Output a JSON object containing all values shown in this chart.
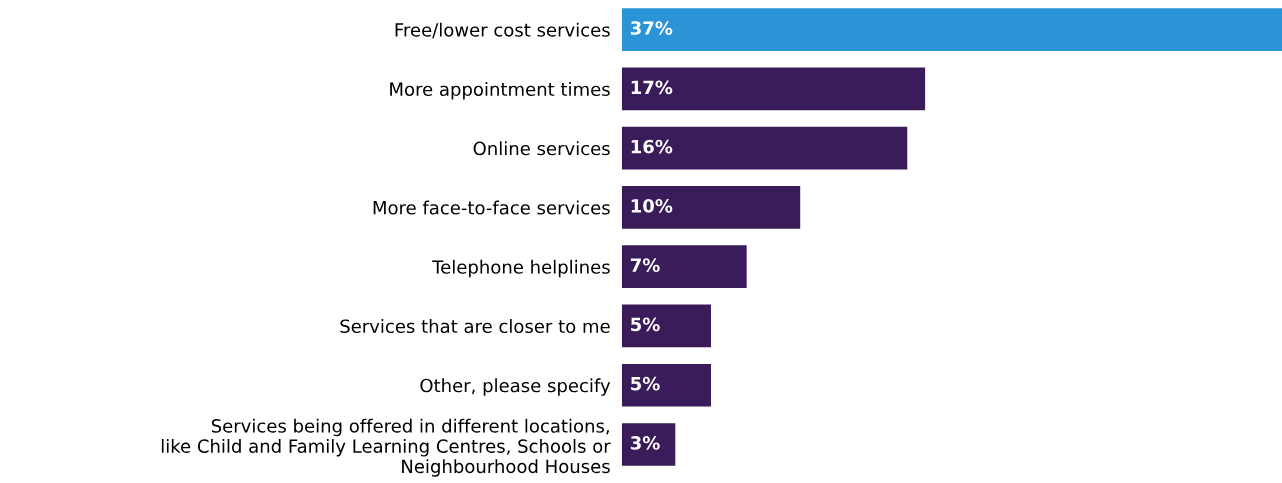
{
  "chart_data": {
    "type": "bar",
    "orientation": "horizontal",
    "categories": [
      "Free/lower cost services",
      "More appointment times",
      "Online services",
      "More face-to-face services",
      "Telephone helplines",
      "Services that are closer to me",
      "Other, please specify",
      "Services being offered in different locations,\nlike Child and Family Learning Centres, Schools or\nNeighbourhood Houses"
    ],
    "values": [
      37,
      17,
      16,
      10,
      7,
      5,
      5,
      3
    ],
    "colors": [
      "#2b94d6",
      "#3a1c5a",
      "#3a1c5a",
      "#3a1c5a",
      "#3a1c5a",
      "#3a1c5a",
      "#3a1c5a",
      "#3a1c5a"
    ],
    "value_labels": [
      "37%",
      "17%",
      "16%",
      "10%",
      "7%",
      "5%",
      "5%",
      "3%"
    ],
    "tick_labels": "y",
    "grid": false,
    "legend": false
  }
}
